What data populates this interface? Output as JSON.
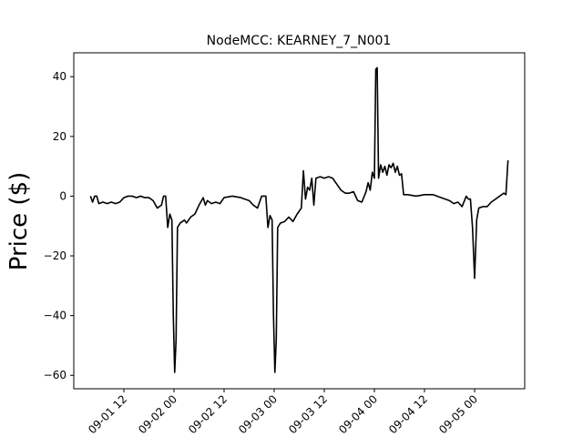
{
  "chart_data": {
    "type": "line",
    "title": "NodeMCC: KEARNEY_7_N001",
    "xlabel": "",
    "ylabel": "Price ($)",
    "grid": false,
    "xlim": [
      "2021-09-01 00:00",
      "2021-09-05 12:00"
    ],
    "ylim": [
      -64.5,
      48
    ],
    "x_ticks": [
      "2021-09-01 12:00",
      "2021-09-02 00:00",
      "2021-09-02 12:00",
      "2021-09-03 00:00",
      "2021-09-03 12:00",
      "2021-09-04 00:00",
      "2021-09-04 12:00",
      "2021-09-05 00:00"
    ],
    "x_tick_labels": [
      "09-01 12",
      "09-02 00",
      "09-02 12",
      "09-03 00",
      "09-03 12",
      "09-04 00",
      "09-04 12",
      "09-05 00"
    ],
    "y_ticks": [
      -60,
      -40,
      -20,
      0,
      20,
      40
    ],
    "y_tick_labels": [
      "−60",
      "−40",
      "−20",
      "0",
      "20",
      "40"
    ],
    "series": [
      {
        "color": "#000000",
        "points": [
          [
            "2021-09-01 04:00",
            0
          ],
          [
            "2021-09-01 04:30",
            -2.0
          ],
          [
            "2021-09-01 05:00",
            0
          ],
          [
            "2021-09-01 05:30",
            0
          ],
          [
            "2021-09-01 06:00",
            -2.5
          ],
          [
            "2021-09-01 07:00",
            -2.0
          ],
          [
            "2021-09-01 08:00",
            -2.5
          ],
          [
            "2021-09-01 09:00",
            -2.0
          ],
          [
            "2021-09-01 10:00",
            -2.5
          ],
          [
            "2021-09-01 11:00",
            -2.0
          ],
          [
            "2021-09-01 12:00",
            -0.5
          ],
          [
            "2021-09-01 13:00",
            0
          ],
          [
            "2021-09-01 14:00",
            0
          ],
          [
            "2021-09-01 15:00",
            -0.5
          ],
          [
            "2021-09-01 16:00",
            0
          ],
          [
            "2021-09-01 17:00",
            -0.5
          ],
          [
            "2021-09-01 18:00",
            -0.5
          ],
          [
            "2021-09-01 19:00",
            -1.5
          ],
          [
            "2021-09-01 20:00",
            -4.0
          ],
          [
            "2021-09-01 21:00",
            -3.0
          ],
          [
            "2021-09-01 21:30",
            0
          ],
          [
            "2021-09-01 22:00",
            0
          ],
          [
            "2021-09-01 22:30",
            -10.5
          ],
          [
            "2021-09-01 23:00",
            -6.0
          ],
          [
            "2021-09-01 23:30",
            -8.0
          ],
          [
            "2021-09-01 23:50",
            -40.0
          ],
          [
            "2021-09-02 00:10",
            -59.0
          ],
          [
            "2021-09-02 00:30",
            -48.0
          ],
          [
            "2021-09-02 00:50",
            -10.5
          ],
          [
            "2021-09-02 01:30",
            -9.0
          ],
          [
            "2021-09-02 02:30",
            -8.0
          ],
          [
            "2021-09-02 03:00",
            -9.0
          ],
          [
            "2021-09-02 04:00",
            -7.0
          ],
          [
            "2021-09-02 05:00",
            -6.0
          ],
          [
            "2021-09-02 06:00",
            -3.0
          ],
          [
            "2021-09-02 07:00",
            -0.5
          ],
          [
            "2021-09-02 07:30",
            -3.0
          ],
          [
            "2021-09-02 08:00",
            -1.5
          ],
          [
            "2021-09-02 09:00",
            -2.5
          ],
          [
            "2021-09-02 10:00",
            -2.0
          ],
          [
            "2021-09-02 11:00",
            -2.5
          ],
          [
            "2021-09-02 12:00",
            -0.5
          ],
          [
            "2021-09-02 14:00",
            0
          ],
          [
            "2021-09-02 16:00",
            -0.5
          ],
          [
            "2021-09-02 18:00",
            -1.5
          ],
          [
            "2021-09-02 19:00",
            -3.0
          ],
          [
            "2021-09-02 20:00",
            -4.0
          ],
          [
            "2021-09-02 21:00",
            0
          ],
          [
            "2021-09-02 22:00",
            0
          ],
          [
            "2021-09-02 22:30",
            -10.5
          ],
          [
            "2021-09-02 23:00",
            -6.5
          ],
          [
            "2021-09-02 23:30",
            -8.0
          ],
          [
            "2021-09-02 23:50",
            -40.0
          ],
          [
            "2021-09-03 00:10",
            -59.0
          ],
          [
            "2021-09-03 00:30",
            -48.0
          ],
          [
            "2021-09-03 00:50",
            -10.5
          ],
          [
            "2021-09-03 01:30",
            -9.0
          ],
          [
            "2021-09-03 02:30",
            -8.5
          ],
          [
            "2021-09-03 03:30",
            -7.0
          ],
          [
            "2021-09-03 04:30",
            -8.5
          ],
          [
            "2021-09-03 05:30",
            -6.0
          ],
          [
            "2021-09-03 06:30",
            -4.0
          ],
          [
            "2021-09-03 07:00",
            8.5
          ],
          [
            "2021-09-03 07:30",
            -1.0
          ],
          [
            "2021-09-03 08:00",
            3.0
          ],
          [
            "2021-09-03 08:30",
            2.0
          ],
          [
            "2021-09-03 09:00",
            6.0
          ],
          [
            "2021-09-03 09:30",
            -3.0
          ],
          [
            "2021-09-03 10:00",
            6.0
          ],
          [
            "2021-09-03 11:00",
            6.5
          ],
          [
            "2021-09-03 12:00",
            6.0
          ],
          [
            "2021-09-03 13:00",
            6.5
          ],
          [
            "2021-09-03 14:00",
            6.0
          ],
          [
            "2021-09-03 15:00",
            4.0
          ],
          [
            "2021-09-03 16:00",
            2.0
          ],
          [
            "2021-09-03 17:00",
            1.0
          ],
          [
            "2021-09-03 18:00",
            1.0
          ],
          [
            "2021-09-03 19:00",
            1.5
          ],
          [
            "2021-09-03 20:00",
            -1.5
          ],
          [
            "2021-09-03 21:00",
            -2.0
          ],
          [
            "2021-09-03 22:00",
            1.5
          ],
          [
            "2021-09-03 22:30",
            4.5
          ],
          [
            "2021-09-03 23:00",
            2.0
          ],
          [
            "2021-09-03 23:30",
            8.0
          ],
          [
            "2021-09-04 00:00",
            6.0
          ],
          [
            "2021-09-04 00:20",
            42.5
          ],
          [
            "2021-09-04 00:40",
            43.0
          ],
          [
            "2021-09-04 01:00",
            6.0
          ],
          [
            "2021-09-04 01:30",
            10.5
          ],
          [
            "2021-09-04 02:00",
            8.0
          ],
          [
            "2021-09-04 02:30",
            10.0
          ],
          [
            "2021-09-04 03:00",
            7.0
          ],
          [
            "2021-09-04 03:30",
            10.5
          ],
          [
            "2021-09-04 04:00",
            9.5
          ],
          [
            "2021-09-04 04:30",
            11.0
          ],
          [
            "2021-09-04 05:00",
            8.0
          ],
          [
            "2021-09-04 05:30",
            10.0
          ],
          [
            "2021-09-04 06:00",
            7.0
          ],
          [
            "2021-09-04 06:30",
            7.5
          ],
          [
            "2021-09-04 07:00",
            0.5
          ],
          [
            "2021-09-04 08:00",
            0.5
          ],
          [
            "2021-09-04 10:00",
            0
          ],
          [
            "2021-09-04 12:00",
            0.5
          ],
          [
            "2021-09-04 14:00",
            0.5
          ],
          [
            "2021-09-04 16:00",
            -0.5
          ],
          [
            "2021-09-04 18:00",
            -1.5
          ],
          [
            "2021-09-04 19:00",
            -2.5
          ],
          [
            "2021-09-04 20:00",
            -2.0
          ],
          [
            "2021-09-04 21:00",
            -3.5
          ],
          [
            "2021-09-04 22:00",
            0
          ],
          [
            "2021-09-04 22:30",
            -1.0
          ],
          [
            "2021-09-04 23:00",
            -1.0
          ],
          [
            "2021-09-04 23:30",
            -10.5
          ],
          [
            "2021-09-05 00:00",
            -27.5
          ],
          [
            "2021-09-05 00:30",
            -8.0
          ],
          [
            "2021-09-05 01:00",
            -4.0
          ],
          [
            "2021-09-05 02:00",
            -3.5
          ],
          [
            "2021-09-05 03:00",
            -3.5
          ],
          [
            "2021-09-05 04:00",
            -2.0
          ],
          [
            "2021-09-05 05:00",
            -1.0
          ],
          [
            "2021-09-05 06:00",
            0
          ],
          [
            "2021-09-05 07:00",
            1.0
          ],
          [
            "2021-09-05 07:30",
            0.5
          ],
          [
            "2021-09-05 08:00",
            12.0
          ]
        ]
      }
    ]
  }
}
